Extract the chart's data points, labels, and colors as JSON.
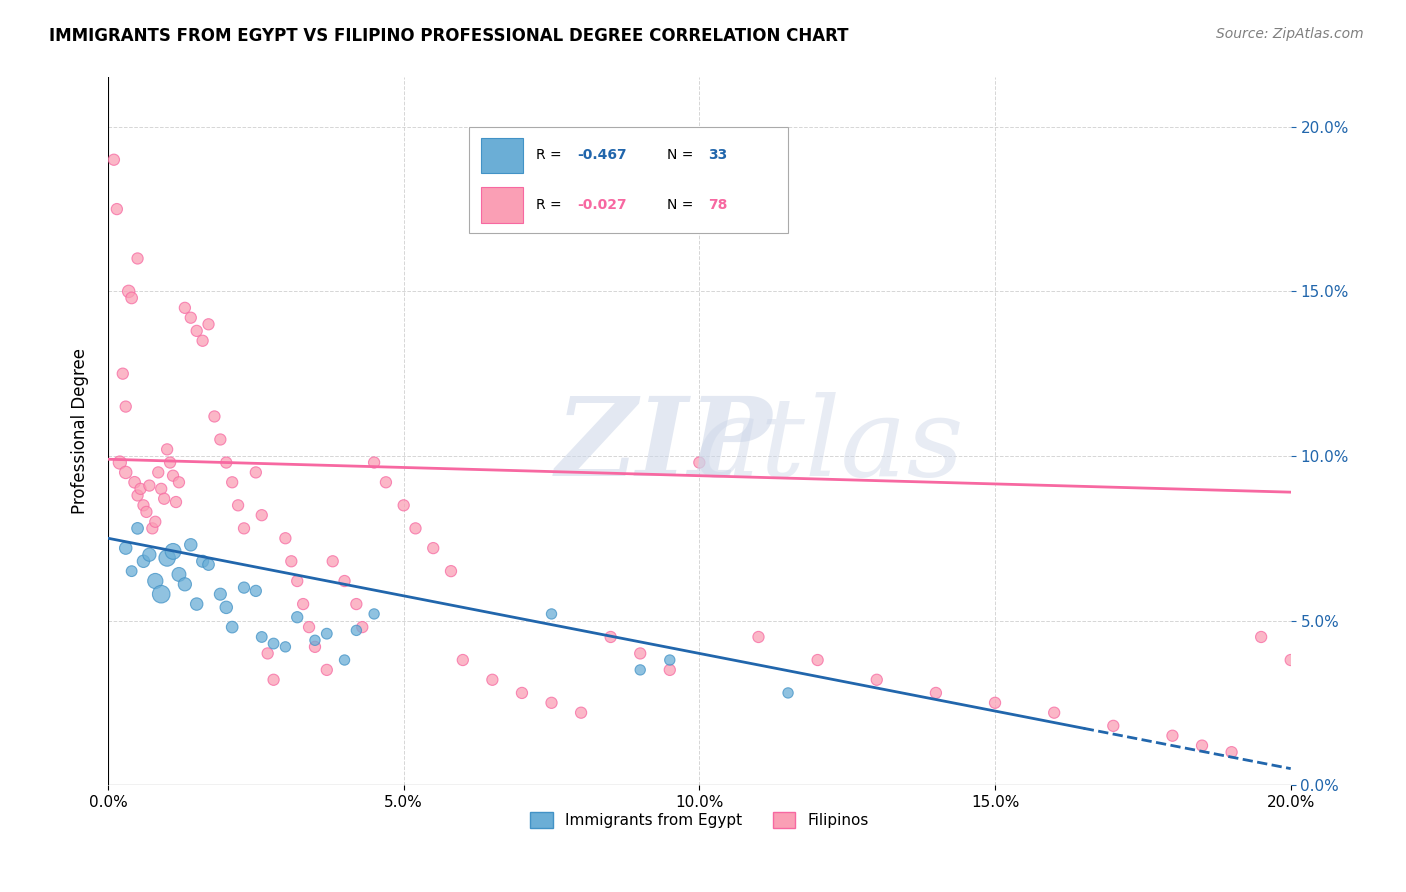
{
  "title": "IMMIGRANTS FROM EGYPT VS FILIPINO PROFESSIONAL DEGREE CORRELATION CHART",
  "source": "Source: ZipAtlas.com",
  "xlabel_ticks": [
    "0.0%",
    "5.0%",
    "10.0%",
    "15.0%",
    "20.0%"
  ],
  "xlabel_tick_vals": [
    0.0,
    5.0,
    10.0,
    15.0,
    20.0
  ],
  "ylabel": "Professional Degree",
  "ylabel_ticks": [
    "0.0%",
    "5.0%",
    "10.0%",
    "15.0%",
    "20.0%"
  ],
  "ylabel_tick_vals": [
    0.0,
    5.0,
    10.0,
    15.0,
    20.0
  ],
  "xlim": [
    0.0,
    20.0
  ],
  "ylim": [
    0.0,
    21.5
  ],
  "legend_blue_label": "Immigrants from Egypt",
  "legend_pink_label": "Filipinos",
  "legend_r_blue": "-0.467",
  "legend_n_blue": "33",
  "legend_r_pink": "-0.027",
  "legend_n_pink": "78",
  "blue_color": "#6baed6",
  "blue_edge_color": "#4292c6",
  "pink_color": "#fa9fb5",
  "pink_edge_color": "#f768a1",
  "blue_line_color": "#2166ac",
  "pink_line_color": "#f768a1",
  "blue_scatter_x": [
    0.3,
    0.4,
    0.5,
    0.6,
    0.7,
    0.8,
    0.9,
    1.0,
    1.1,
    1.2,
    1.3,
    1.4,
    1.5,
    1.6,
    1.7,
    1.9,
    2.0,
    2.1,
    2.3,
    2.5,
    2.6,
    2.8,
    3.0,
    3.2,
    3.5,
    3.7,
    4.0,
    4.2,
    4.5,
    7.5,
    9.0,
    9.5,
    11.5
  ],
  "blue_scatter_y": [
    7.2,
    6.5,
    7.8,
    6.8,
    7.0,
    6.2,
    5.8,
    6.9,
    7.1,
    6.4,
    6.1,
    7.3,
    5.5,
    6.8,
    6.7,
    5.8,
    5.4,
    4.8,
    6.0,
    5.9,
    4.5,
    4.3,
    4.2,
    5.1,
    4.4,
    4.6,
    3.8,
    4.7,
    5.2,
    5.2,
    3.5,
    3.8,
    2.8
  ],
  "blue_scatter_sizes": [
    80,
    60,
    70,
    80,
    90,
    120,
    160,
    140,
    130,
    100,
    90,
    80,
    80,
    75,
    70,
    75,
    80,
    70,
    65,
    65,
    60,
    60,
    55,
    65,
    55,
    60,
    55,
    55,
    55,
    55,
    55,
    55,
    55
  ],
  "pink_scatter_x": [
    0.2,
    0.3,
    0.35,
    0.4,
    0.45,
    0.5,
    0.55,
    0.6,
    0.65,
    0.7,
    0.75,
    0.8,
    0.85,
    0.9,
    0.95,
    1.0,
    1.05,
    1.1,
    1.15,
    1.2,
    1.3,
    1.4,
    1.5,
    1.6,
    1.7,
    1.8,
    1.9,
    2.0,
    2.1,
    2.2,
    2.3,
    2.5,
    2.6,
    2.7,
    2.8,
    3.0,
    3.1,
    3.2,
    3.3,
    3.4,
    3.5,
    3.7,
    3.8,
    4.0,
    4.2,
    4.3,
    4.5,
    4.7,
    5.0,
    5.2,
    5.5,
    5.8,
    6.0,
    6.5,
    7.0,
    7.5,
    8.0,
    8.5,
    9.0,
    9.5,
    10.0,
    11.0,
    12.0,
    13.0,
    14.0,
    15.0,
    16.0,
    17.0,
    18.0,
    18.5,
    19.0,
    19.5,
    20.0,
    0.1,
    0.15,
    0.25,
    0.3,
    0.5
  ],
  "pink_scatter_y": [
    9.8,
    9.5,
    15.0,
    14.8,
    9.2,
    8.8,
    9.0,
    8.5,
    8.3,
    9.1,
    7.8,
    8.0,
    9.5,
    9.0,
    8.7,
    10.2,
    9.8,
    9.4,
    8.6,
    9.2,
    14.5,
    14.2,
    13.8,
    13.5,
    14.0,
    11.2,
    10.5,
    9.8,
    9.2,
    8.5,
    7.8,
    9.5,
    8.2,
    4.0,
    3.2,
    7.5,
    6.8,
    6.2,
    5.5,
    4.8,
    4.2,
    3.5,
    6.8,
    6.2,
    5.5,
    4.8,
    9.8,
    9.2,
    8.5,
    7.8,
    7.2,
    6.5,
    3.8,
    3.2,
    2.8,
    2.5,
    2.2,
    4.5,
    4.0,
    3.5,
    9.8,
    4.5,
    3.8,
    3.2,
    2.8,
    2.5,
    2.2,
    1.8,
    1.5,
    1.2,
    1.0,
    4.5,
    3.8,
    19.0,
    17.5,
    12.5,
    11.5,
    16.0
  ],
  "pink_scatter_sizes": [
    90,
    80,
    80,
    70,
    70,
    65,
    65,
    65,
    65,
    65,
    65,
    65,
    65,
    65,
    65,
    65,
    65,
    65,
    65,
    65,
    65,
    65,
    65,
    65,
    65,
    65,
    65,
    65,
    65,
    65,
    65,
    65,
    65,
    65,
    65,
    65,
    65,
    65,
    65,
    65,
    65,
    65,
    65,
    65,
    65,
    65,
    65,
    65,
    65,
    65,
    65,
    65,
    65,
    65,
    65,
    65,
    65,
    65,
    65,
    65,
    65,
    65,
    65,
    65,
    65,
    65,
    65,
    65,
    65,
    65,
    65,
    65,
    65,
    65,
    65,
    65,
    65,
    65
  ],
  "blue_trend_x0": 0.0,
  "blue_trend_x1": 20.0,
  "blue_trend_y0": 7.5,
  "blue_trend_y1": 0.5,
  "blue_trend_solid_end": 16.5,
  "pink_trend_x0": 0.0,
  "pink_trend_x1": 20.0,
  "pink_trend_y0": 9.9,
  "pink_trend_y1": 8.9,
  "background_color": "#ffffff",
  "grid_color": "#cccccc",
  "right_tick_color": "#2166ac"
}
